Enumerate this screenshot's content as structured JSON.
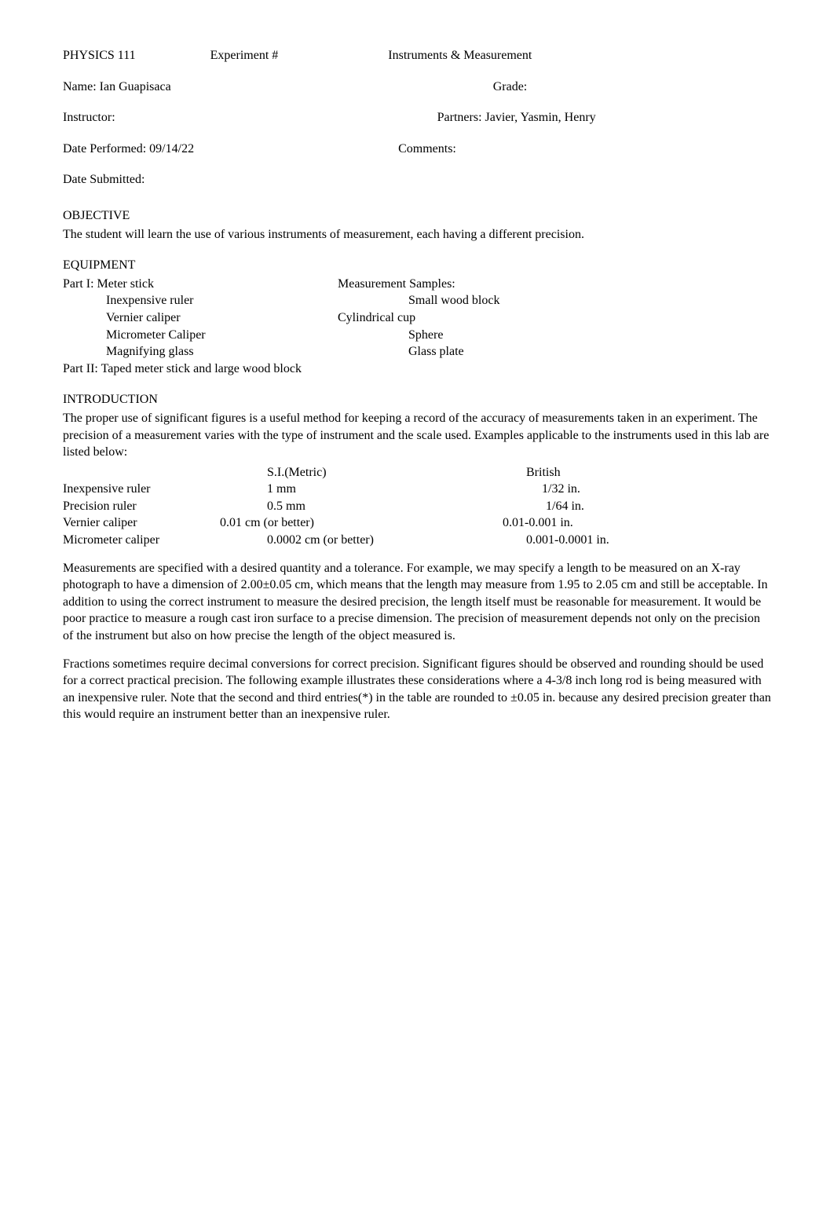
{
  "header": {
    "course": "PHYSICS 111",
    "experiment_label": "Experiment   #",
    "title": "Instruments & Measurement",
    "name_label": "Name:  Ian Guapisaca",
    "grade_label": "Grade:",
    "instructor_label": "Instructor:",
    "partners_label": "Partners: Javier, Yasmin, Henry",
    "date_performed_label": "Date Performed: 09/14/22",
    "comments_label": "Comments:",
    "date_submitted_label": "Date Submitted:"
  },
  "objective": {
    "heading": "OBJECTIVE",
    "text": "The student will learn the use of various instruments of measurement, each having a different precision."
  },
  "equipment": {
    "heading": "EQUIPMENT",
    "part1_label": "Part I:  Meter stick",
    "samples_label": "Measurement Samples:",
    "inexpensive_ruler": "Inexpensive ruler",
    "small_wood_block": "Small wood block",
    "vernier_caliper": "Vernier caliper",
    "cylindrical_cup": "Cylindrical cup",
    "micrometer_caliper": "Micrometer Caliper",
    "sphere": "Sphere",
    "magnifying_glass": "Magnifying glass",
    "glass_plate": "Glass plate",
    "part2_label": "Part II: Taped meter stick and large wood block"
  },
  "introduction": {
    "heading": "INTRODUCTION",
    "text": "The proper use of significant figures is a useful method for keeping a record of the accuracy of measurements taken in an experiment.  The precision of a measurement varies with the type of instrument and the scale used.  Examples applicable to the instruments used in this lab are listed below:"
  },
  "precision_table": {
    "header": {
      "metric": "S.I.(Metric)",
      "british": "British"
    },
    "rows": [
      {
        "name": "Inexpensive ruler",
        "metric": "1 mm",
        "british": "1/32 in."
      },
      {
        "name": "Precision ruler",
        "metric": "0.5 mm",
        "british": "1/64 in."
      },
      {
        "name": "Vernier caliper",
        "metric": "0.01 cm (or better)",
        "british": "0.01-0.001 in."
      },
      {
        "name": "Micrometer caliper",
        "metric": "0.0002 cm (or better)",
        "british": "0.001-0.0001 in."
      }
    ]
  },
  "para1": "Measurements are specified with a desired quantity and a tolerance.  For example, we may specify a length to be measured on an X-ray photograph to have a dimension of 2.00±0.05 cm, which means that the length may measure from 1.95 to 2.05 cm and still be acceptable.  In addition to using the correct instrument to measure the desired precision, the length itself must be reasonable for measurement.  It would be poor practice to measure a rough cast iron surface to a precise dimension.  The precision of measurement depends not only on the precision of the instrument but also on how precise the length of the object measured is.",
  "para2": "Fractions sometimes require decimal conversions for correct precision.  Significant figures should be observed and rounding should be used for a correct practical precision.  The following example illustrates these considerations where a 4-3/8 inch long rod is being measured with an inexpensive ruler.  Note that the second and third entries(*) in the table are rounded to ±0.05 in. because any desired precision greater than this would require an instrument better than an inexpensive ruler."
}
